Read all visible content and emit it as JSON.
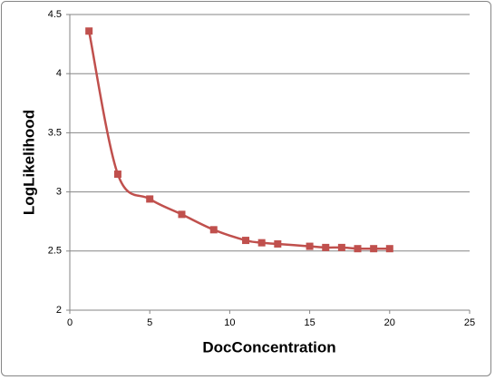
{
  "chart_data": {
    "type": "scatter-smooth",
    "x_label": "DocConcentration",
    "y_label": "LogLikelihood",
    "series": [
      {
        "name": "LogLikelihood",
        "color": "#c0504d",
        "x": [
          1.2,
          3,
          5,
          7,
          9,
          11,
          12,
          13,
          15,
          16,
          17,
          18,
          19,
          20
        ],
        "values": [
          4.36,
          3.15,
          2.94,
          2.81,
          2.68,
          2.59,
          2.57,
          2.56,
          2.54,
          2.53,
          2.53,
          2.52,
          2.52,
          2.52
        ]
      }
    ],
    "xlim": [
      0,
      25
    ],
    "xticks": [
      0,
      5,
      10,
      15,
      20,
      25
    ],
    "ylim": [
      2,
      4.5
    ],
    "yticks": [
      2,
      2.5,
      3,
      3.5,
      4,
      4.5
    ],
    "grid": true
  }
}
